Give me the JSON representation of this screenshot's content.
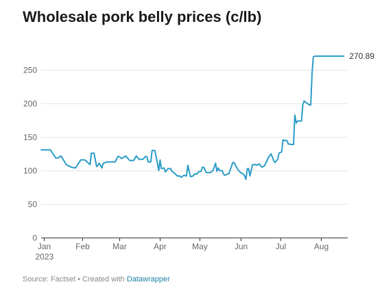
{
  "chart_data": {
    "type": "line",
    "title": "Wholesale pork belly prices (c/lb)",
    "xlabel": "",
    "ylabel": "",
    "ylim": [
      0,
      275
    ],
    "yticks": [
      0,
      50,
      100,
      150,
      200,
      250
    ],
    "xticks": [
      {
        "label": "Jan",
        "sublabel": "2023",
        "date": "2023-01-03"
      },
      {
        "label": "Feb",
        "sublabel": "",
        "date": "2023-02-01"
      },
      {
        "label": "Mar",
        "sublabel": "",
        "date": "2023-03-01"
      },
      {
        "label": "Apr",
        "sublabel": "",
        "date": "2023-04-01"
      },
      {
        "label": "May",
        "sublabel": "",
        "date": "2023-05-01"
      },
      {
        "label": "Jun",
        "sublabel": "",
        "date": "2023-06-01"
      },
      {
        "label": "Jul",
        "sublabel": "",
        "date": "2023-07-01"
      },
      {
        "label": "Aug",
        "sublabel": "",
        "date": "2023-08-01"
      }
    ],
    "xrange": [
      "2023-01-01",
      "2023-08-21"
    ],
    "end_label": "270.89",
    "line_color": "#2a9cc6",
    "grid": true,
    "series": [
      {
        "x": [
          "2023-01-01",
          "2023-01-07",
          "2023-01-08",
          "2023-01-12",
          "2023-01-13",
          "2023-01-14",
          "2023-01-16",
          "2023-01-20",
          "2023-01-24",
          "2023-01-27",
          "2023-01-31",
          "2023-02-01",
          "2023-02-02",
          "2023-02-03",
          "2023-02-07",
          "2023-02-08",
          "2023-02-09",
          "2023-02-10",
          "2023-02-12",
          "2023-02-13",
          "2023-02-14",
          "2023-02-16",
          "2023-02-17",
          "2023-02-20",
          "2023-02-22",
          "2023-02-23",
          "2023-02-26",
          "2023-02-28",
          "2023-03-01",
          "2023-03-03",
          "2023-03-06",
          "2023-03-09",
          "2023-03-12",
          "2023-03-14",
          "2023-03-16",
          "2023-03-19",
          "2023-03-21",
          "2023-03-22",
          "2023-03-23",
          "2023-03-25",
          "2023-03-26",
          "2023-03-28",
          "2023-03-29",
          "2023-03-31",
          "2023-04-01",
          "2023-04-02",
          "2023-04-04",
          "2023-04-05",
          "2023-04-07",
          "2023-04-08",
          "2023-04-09",
          "2023-04-10",
          "2023-04-12",
          "2023-04-14",
          "2023-04-16",
          "2023-04-17",
          "2023-04-19",
          "2023-04-21",
          "2023-04-22",
          "2023-04-24",
          "2023-04-26",
          "2023-04-27",
          "2023-04-29",
          "2023-04-30",
          "2023-05-02",
          "2023-05-03",
          "2023-05-04",
          "2023-05-06",
          "2023-05-08",
          "2023-05-09",
          "2023-05-11",
          "2023-05-13",
          "2023-05-14",
          "2023-05-15",
          "2023-05-16",
          "2023-05-18",
          "2023-05-19",
          "2023-05-20",
          "2023-05-22",
          "2023-05-23",
          "2023-05-26",
          "2023-05-27",
          "2023-05-30",
          "2023-06-01",
          "2023-06-03",
          "2023-06-04",
          "2023-06-05",
          "2023-06-06",
          "2023-06-07",
          "2023-06-08",
          "2023-06-10",
          "2023-06-12",
          "2023-06-13",
          "2023-06-15",
          "2023-06-17",
          "2023-06-19",
          "2023-06-21",
          "2023-06-22",
          "2023-06-24",
          "2023-06-26",
          "2023-06-27",
          "2023-06-29",
          "2023-06-30",
          "2023-07-02",
          "2023-07-03",
          "2023-07-04",
          "2023-07-06",
          "2023-07-07",
          "2023-07-09",
          "2023-07-11",
          "2023-07-12",
          "2023-07-13",
          "2023-07-14",
          "2023-07-15",
          "2023-07-16",
          "2023-07-17",
          "2023-07-18",
          "2023-07-19",
          "2023-07-23",
          "2023-07-24",
          "2023-07-25",
          "2023-07-26",
          "2023-07-27",
          "2023-07-29",
          "2023-07-30",
          "2023-07-31",
          "2023-08-01",
          "2023-08-02",
          "2023-08-18"
        ],
        "y": [
          131,
          131,
          131,
          119,
          119,
          119,
          122,
          109,
          105,
          104,
          116,
          116,
          116,
          116,
          109,
          126,
          126,
          126,
          106,
          108,
          111,
          104,
          111,
          113,
          113,
          113,
          113,
          121,
          121,
          118,
          122,
          115,
          115,
          122,
          117,
          117,
          121,
          121,
          113,
          113,
          130,
          130,
          121,
          100,
          116,
          103,
          104,
          98,
          103,
          103,
          103,
          99,
          96,
          92,
          92,
          90,
          93,
          92,
          108,
          91,
          92,
          95,
          95,
          98,
          99,
          105,
          105,
          97,
          97,
          97,
          100,
          111,
          99,
          104,
          100,
          100,
          95,
          93,
          95,
          95,
          112,
          112,
          101,
          97,
          95,
          92,
          87,
          103,
          103,
          92,
          109,
          109,
          108,
          110,
          105,
          107,
          115,
          120,
          125,
          115,
          112,
          117,
          126,
          128,
          146,
          145,
          145,
          140,
          139,
          139,
          183,
          171,
          174,
          174,
          174,
          174,
          198,
          204,
          198,
          198,
          245,
          270,
          270.89,
          270.89,
          270.89,
          270.89,
          270.89,
          270.89,
          270.89
        ]
      }
    ]
  },
  "footer": {
    "source_text": "Source: Factset • Created with ",
    "link_text": "Datawrapper"
  }
}
